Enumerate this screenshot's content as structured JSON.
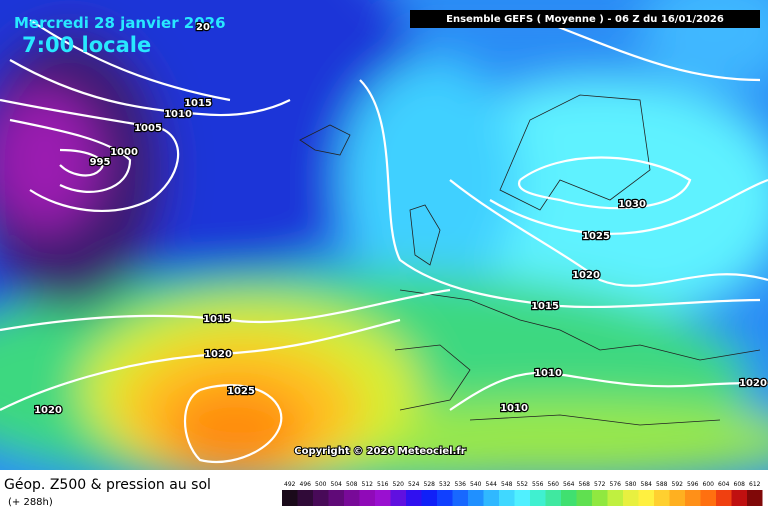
{
  "header": {
    "date": "Mercredi 28 janvier 2026",
    "time": "7:00 locale",
    "run": "Ensemble GEFS  ( Moyenne )  - 06 Z du 16/01/2026"
  },
  "isobar_labels": [
    20,
    1015,
    1010,
    1005,
    1000,
    995,
    1015,
    1020,
    1025,
    1020,
    1030,
    1025,
    1020,
    1015,
    1010,
    1010,
    1020
  ],
  "copyright": "Copyright © 2026 Meteociel.fr",
  "footer": {
    "title": "Géop. Z500 & pression au sol",
    "lead": "(+ 288h)"
  },
  "colorbar": {
    "labels": [
      492,
      496,
      500,
      504,
      508,
      512,
      516,
      520,
      524,
      528,
      532,
      536,
      540,
      544,
      548,
      552,
      556,
      560,
      564,
      568,
      572,
      576,
      580,
      584,
      588,
      592,
      596,
      600,
      604,
      608,
      612
    ]
  }
}
